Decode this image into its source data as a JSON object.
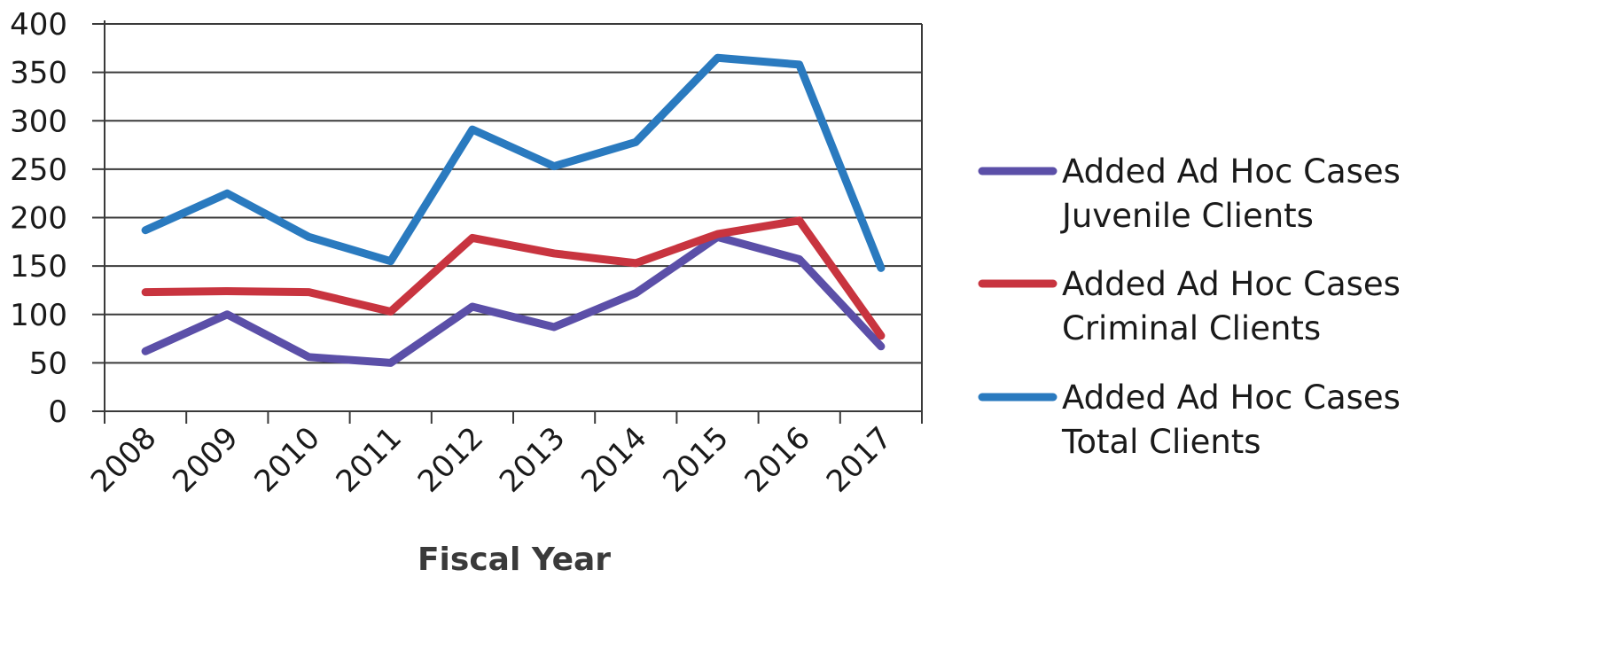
{
  "chart_data": {
    "type": "line",
    "xlabel": "Fiscal Year",
    "ylabel": "",
    "ylim": [
      0,
      400
    ],
    "yticks": [
      "0",
      "50",
      "100",
      "150",
      "200",
      "250",
      "300",
      "350",
      "400"
    ],
    "categories": [
      "2008",
      "2009",
      "2010",
      "2011",
      "2012",
      "2013",
      "2014",
      "2015",
      "2016",
      "2017"
    ],
    "grid": "horizontal",
    "legend_position": "right",
    "series": [
      {
        "name_line1": "Added Ad Hoc Cases",
        "name_line2": "Juvenile Clients",
        "color": "#5b4fa8",
        "values": [
          62,
          100,
          56,
          50,
          108,
          87,
          122,
          180,
          157,
          67
        ]
      },
      {
        "name_line1": "Added Ad Hoc Cases",
        "name_line2": "Criminal Clients",
        "color": "#c8343f",
        "values": [
          123,
          124,
          123,
          103,
          179,
          163,
          153,
          183,
          197,
          78
        ]
      },
      {
        "name_line1": "Added Ad Hoc Cases",
        "name_line2": "Total Clients",
        "color": "#2a7abf",
        "values": [
          187,
          225,
          180,
          155,
          291,
          253,
          278,
          365,
          358,
          148
        ]
      }
    ]
  }
}
